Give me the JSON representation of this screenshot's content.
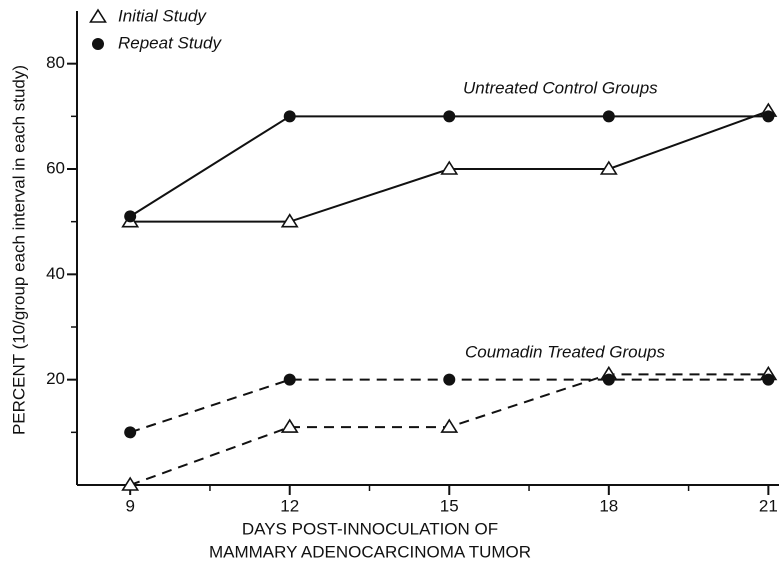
{
  "chart_data": {
    "type": "line",
    "xlabel": [
      "DAYS POST-INNOCULATION OF",
      "MAMMARY ADENOCARCINOMA TUMOR"
    ],
    "ylabel": "PERCENT (10/group each interval in each study)",
    "x": [
      9,
      12,
      15,
      18,
      21
    ],
    "xlim": [
      8,
      21.2
    ],
    "xticks": [
      9,
      12,
      15,
      18,
      21
    ],
    "xticks_minor": [
      10.5,
      13.5,
      16.5,
      19.5
    ],
    "ylim": [
      0,
      90
    ],
    "yticks": [
      20,
      40,
      60,
      80
    ],
    "yticks_minor": [
      10,
      30,
      50,
      70
    ],
    "color": "#111111",
    "groups": [
      {
        "label": "Untreated Control Groups",
        "dashed": false,
        "series": [
          {
            "name": "Initial Study",
            "marker": "triangle",
            "values": [
              50,
              50,
              60,
              60,
              71
            ]
          },
          {
            "name": "Repeat Study",
            "marker": "circle",
            "values": [
              51,
              70,
              70,
              70,
              70
            ]
          }
        ]
      },
      {
        "label": "Coumadin Treated Groups",
        "dashed": true,
        "series": [
          {
            "name": "Initial Study",
            "marker": "triangle",
            "values": [
              0,
              11,
              11,
              21,
              21
            ]
          },
          {
            "name": "Repeat Study",
            "marker": "circle",
            "values": [
              10,
              20,
              20,
              20,
              20
            ]
          }
        ]
      }
    ]
  }
}
